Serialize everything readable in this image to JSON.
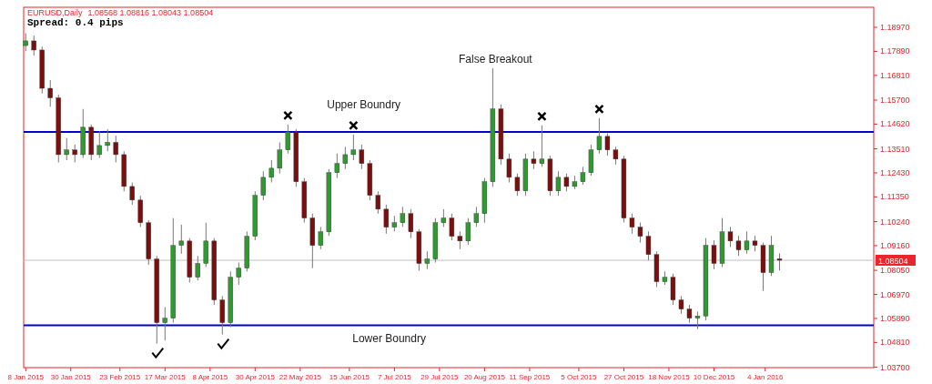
{
  "chart_data": {
    "type": "candlestick",
    "title": "EURUSD,Daily",
    "subtitle": "1.08568 1.08816 1.08043 1.08504",
    "annotations": [
      "Spread: 0.4 pips",
      "Upper Boundry",
      "False Breakout",
      "Lower Boundry"
    ],
    "x": [
      "2015-01-08",
      "2015-01-12",
      "2015-01-16",
      "2015-01-20",
      "2015-01-24",
      "2015-01-28",
      "2015-02-01",
      "2015-02-05",
      "2015-02-09",
      "2015-02-13",
      "2015-02-17",
      "2015-02-21",
      "2015-02-25",
      "2015-03-01",
      "2015-03-05",
      "2015-03-09",
      "2015-03-13",
      "2015-03-17",
      "2015-03-21",
      "2015-03-25",
      "2015-03-29",
      "2015-04-02",
      "2015-04-06",
      "2015-04-10",
      "2015-04-14",
      "2015-04-18",
      "2015-04-22",
      "2015-04-26",
      "2015-04-30",
      "2015-05-04",
      "2015-05-08",
      "2015-05-12",
      "2015-05-16",
      "2015-05-20",
      "2015-05-24",
      "2015-05-28",
      "2015-06-01",
      "2015-06-05",
      "2015-06-09",
      "2015-06-13",
      "2015-06-17",
      "2015-06-21",
      "2015-06-25",
      "2015-06-29",
      "2015-07-03",
      "2015-07-07",
      "2015-07-11",
      "2015-07-15",
      "2015-07-19",
      "2015-07-23",
      "2015-07-27",
      "2015-07-31",
      "2015-08-04",
      "2015-08-08",
      "2015-08-12",
      "2015-08-16",
      "2015-08-20",
      "2015-08-24",
      "2015-08-28",
      "2015-09-01",
      "2015-09-05",
      "2015-09-09",
      "2015-09-13",
      "2015-09-17",
      "2015-09-21",
      "2015-09-25",
      "2015-09-29",
      "2015-10-03",
      "2015-10-07",
      "2015-10-11",
      "2015-10-15",
      "2015-10-19",
      "2015-10-23",
      "2015-10-27",
      "2015-10-31",
      "2015-11-04",
      "2015-11-08",
      "2015-11-12",
      "2015-11-16",
      "2015-11-20",
      "2015-11-24",
      "2015-11-28",
      "2015-12-02",
      "2015-12-06",
      "2015-12-10",
      "2015-12-14",
      "2015-12-18",
      "2015-12-22",
      "2015-12-26",
      "2015-12-30",
      "2016-01-03",
      "2016-01-07",
      "2016-01-11"
    ],
    "ohlc": [
      [
        1.1815,
        1.187,
        1.179,
        1.1836
      ],
      [
        1.1836,
        1.186,
        1.177,
        1.1795
      ],
      [
        1.1795,
        1.181,
        1.16,
        1.1623
      ],
      [
        1.1623,
        1.166,
        1.154,
        1.158
      ],
      [
        1.158,
        1.1595,
        1.129,
        1.1325
      ],
      [
        1.1325,
        1.14,
        1.13,
        1.1346
      ],
      [
        1.1346,
        1.137,
        1.129,
        1.1325
      ],
      [
        1.1325,
        1.153,
        1.131,
        1.1448
      ],
      [
        1.1448,
        1.146,
        1.13,
        1.1325
      ],
      [
        1.1325,
        1.143,
        1.131,
        1.1366
      ],
      [
        1.1366,
        1.144,
        1.134,
        1.138
      ],
      [
        1.138,
        1.141,
        1.129,
        1.1325
      ],
      [
        1.1325,
        1.134,
        1.116,
        1.1182
      ],
      [
        1.1182,
        1.12,
        1.11,
        1.1121
      ],
      [
        1.1121,
        1.114,
        1.1,
        1.1019
      ],
      [
        1.1019,
        1.103,
        1.083,
        1.0856
      ],
      [
        1.0856,
        1.087,
        1.0476,
        1.057
      ],
      [
        1.057,
        1.064,
        1.049,
        1.059
      ],
      [
        1.059,
        1.104,
        1.057,
        1.0917
      ],
      [
        1.0917,
        1.101,
        1.088,
        1.0937
      ],
      [
        1.0937,
        1.095,
        1.075,
        1.0774
      ],
      [
        1.0774,
        1.087,
        1.076,
        1.0836
      ],
      [
        1.0836,
        1.1019,
        1.082,
        1.0937
      ],
      [
        1.0937,
        1.095,
        1.065,
        1.0672
      ],
      [
        1.0672,
        1.069,
        1.0517,
        1.057
      ],
      [
        1.057,
        1.08,
        1.055,
        1.0774
      ],
      [
        1.0774,
        1.084,
        1.074,
        1.0815
      ],
      [
        1.0815,
        1.098,
        1.08,
        1.0958
      ],
      [
        1.0958,
        1.116,
        1.094,
        1.1142
      ],
      [
        1.1142,
        1.125,
        1.112,
        1.1223
      ],
      [
        1.1223,
        1.13,
        1.12,
        1.1264
      ],
      [
        1.1264,
        1.138,
        1.124,
        1.1346
      ],
      [
        1.1346,
        1.146,
        1.133,
        1.1427
      ],
      [
        1.1427,
        1.144,
        1.118,
        1.1203
      ],
      [
        1.1203,
        1.122,
        1.102,
        1.104
      ],
      [
        1.104,
        1.106,
        1.0815,
        1.0917
      ],
      [
        1.0917,
        1.1,
        1.09,
        1.0978
      ],
      [
        1.0978,
        1.126,
        1.096,
        1.1244
      ],
      [
        1.1244,
        1.133,
        1.122,
        1.1285
      ],
      [
        1.1285,
        1.136,
        1.126,
        1.1325
      ],
      [
        1.1325,
        1.1415,
        1.13,
        1.1346
      ],
      [
        1.1346,
        1.137,
        1.126,
        1.1285
      ],
      [
        1.1285,
        1.13,
        1.112,
        1.1142
      ],
      [
        1.1142,
        1.116,
        1.106,
        1.108
      ],
      [
        1.108,
        1.11,
        1.097,
        1.0999
      ],
      [
        1.0999,
        1.105,
        1.098,
        1.1019
      ],
      [
        1.1019,
        1.109,
        1.1,
        1.106
      ],
      [
        1.106,
        1.108,
        1.095,
        1.0978
      ],
      [
        1.0978,
        1.099,
        1.0803,
        1.0836
      ],
      [
        1.0836,
        1.089,
        1.081,
        1.0856
      ],
      [
        1.0856,
        1.104,
        1.084,
        1.1019
      ],
      [
        1.1019,
        1.108,
        1.1,
        1.104
      ],
      [
        1.104,
        1.106,
        1.094,
        1.0958
      ],
      [
        1.0958,
        1.098,
        1.09,
        1.0937
      ],
      [
        1.0937,
        1.104,
        1.092,
        1.1019
      ],
      [
        1.1019,
        1.109,
        1.1,
        1.106
      ],
      [
        1.106,
        1.122,
        1.1019,
        1.1203
      ],
      [
        1.1203,
        1.1713,
        1.118,
        1.153
      ],
      [
        1.153,
        1.155,
        1.128,
        1.1305
      ],
      [
        1.1305,
        1.133,
        1.12,
        1.1223
      ],
      [
        1.1223,
        1.124,
        1.114,
        1.1162
      ],
      [
        1.1162,
        1.133,
        1.114,
        1.1305
      ],
      [
        1.1305,
        1.134,
        1.126,
        1.1285
      ],
      [
        1.1285,
        1.1456,
        1.127,
        1.1305
      ],
      [
        1.1305,
        1.132,
        1.114,
        1.1162
      ],
      [
        1.1162,
        1.125,
        1.114,
        1.1223
      ],
      [
        1.1223,
        1.124,
        1.116,
        1.1182
      ],
      [
        1.1182,
        1.123,
        1.117,
        1.1203
      ],
      [
        1.1203,
        1.127,
        1.119,
        1.1244
      ],
      [
        1.1244,
        1.137,
        1.123,
        1.1346
      ],
      [
        1.1346,
        1.1489,
        1.133,
        1.1407
      ],
      [
        1.1407,
        1.142,
        1.132,
        1.1346
      ],
      [
        1.1346,
        1.136,
        1.128,
        1.1305
      ],
      [
        1.1305,
        1.132,
        1.102,
        1.104
      ],
      [
        1.104,
        1.106,
        1.097,
        1.0999
      ],
      [
        1.0999,
        1.102,
        1.093,
        1.0958
      ],
      [
        1.0958,
        1.098,
        1.085,
        1.0876
      ],
      [
        1.0876,
        1.089,
        1.073,
        1.0754
      ],
      [
        1.0754,
        1.08,
        1.074,
        1.0774
      ],
      [
        1.0774,
        1.079,
        1.065,
        1.0672
      ],
      [
        1.0672,
        1.069,
        1.061,
        1.0631
      ],
      [
        1.0631,
        1.065,
        1.057,
        1.059
      ],
      [
        1.059,
        1.062,
        1.0541,
        1.06
      ],
      [
        1.06,
        1.095,
        1.058,
        1.0917
      ],
      [
        1.0917,
        1.094,
        1.081,
        1.0836
      ],
      [
        1.0836,
        1.104,
        1.082,
        1.0978
      ],
      [
        1.0978,
        1.1,
        1.091,
        1.0937
      ],
      [
        1.0937,
        1.096,
        1.087,
        1.0897
      ],
      [
        1.0897,
        1.098,
        1.088,
        1.0937
      ],
      [
        1.0937,
        1.096,
        1.089,
        1.0917
      ],
      [
        1.0917,
        1.093,
        1.0713,
        1.0795
      ],
      [
        1.0795,
        1.096,
        1.078,
        1.0917
      ],
      [
        1.08568,
        1.08816,
        1.08043,
        1.08504
      ]
    ],
    "xlim": [
      "2015-01-07",
      "2016-02-26"
    ],
    "xticks": [
      {
        "value": "2015-01-08",
        "label": "8 Jan 2015"
      },
      {
        "value": "2015-01-30",
        "label": "30 Jan 2015"
      },
      {
        "value": "2015-02-23",
        "label": "23 Feb 2015"
      },
      {
        "value": "2015-03-17",
        "label": "17 Mar 2015"
      },
      {
        "value": "2015-04-08",
        "label": "8 Apr 2015"
      },
      {
        "value": "2015-04-30",
        "label": "30 Apr 2015"
      },
      {
        "value": "2015-05-22",
        "label": "22 May 2015"
      },
      {
        "value": "2015-06-15",
        "label": "15 Jun 2015"
      },
      {
        "value": "2015-07-07",
        "label": "7 Jul 2015"
      },
      {
        "value": "2015-07-29",
        "label": "29 Jul 2015"
      },
      {
        "value": "2015-08-20",
        "label": "20 Aug 2015"
      },
      {
        "value": "2015-09-11",
        "label": "11 Sep 2015"
      },
      {
        "value": "2015-10-05",
        "label": "5 Oct 2015"
      },
      {
        "value": "2015-10-27",
        "label": "27 Oct 2015"
      },
      {
        "value": "2015-11-18",
        "label": "18 Nov 2015"
      },
      {
        "value": "2015-12-10",
        "label": "10 Dec 2015"
      },
      {
        "value": "2016-01-04",
        "label": "4 Jan 2016"
      }
    ],
    "ylim": [
      1.0368,
      1.1987
    ],
    "yticks": [
      {
        "value": 1.1897,
        "label": "1.18970"
      },
      {
        "value": 1.1789,
        "label": "1.17890"
      },
      {
        "value": 1.1681,
        "label": "1.16810"
      },
      {
        "value": 1.157,
        "label": "1.15700"
      },
      {
        "value": 1.1462,
        "label": "1.14620"
      },
      {
        "value": 1.1351,
        "label": "1.13510"
      },
      {
        "value": 1.1243,
        "label": "1.12430"
      },
      {
        "value": 1.1135,
        "label": "1.11350"
      },
      {
        "value": 1.1024,
        "label": "1.10240"
      },
      {
        "value": 1.0916,
        "label": "1.09160"
      },
      {
        "value": 1.0805,
        "label": "1.08050"
      },
      {
        "value": 1.0697,
        "label": "1.06970"
      },
      {
        "value": 1.0589,
        "label": "1.05890"
      },
      {
        "value": 1.0481,
        "label": "1.04810"
      },
      {
        "value": 1.037,
        "label": "1.03700"
      }
    ],
    "ref_lines": [
      {
        "axis": "y",
        "value": 1.1427,
        "color": "#0000cc"
      },
      {
        "axis": "y",
        "value": 1.0558,
        "color": "#0000cc"
      },
      {
        "axis": "y",
        "value": 1.08504,
        "label": "1.08504",
        "color": "#c0c0c0"
      }
    ],
    "grid": false
  }
}
